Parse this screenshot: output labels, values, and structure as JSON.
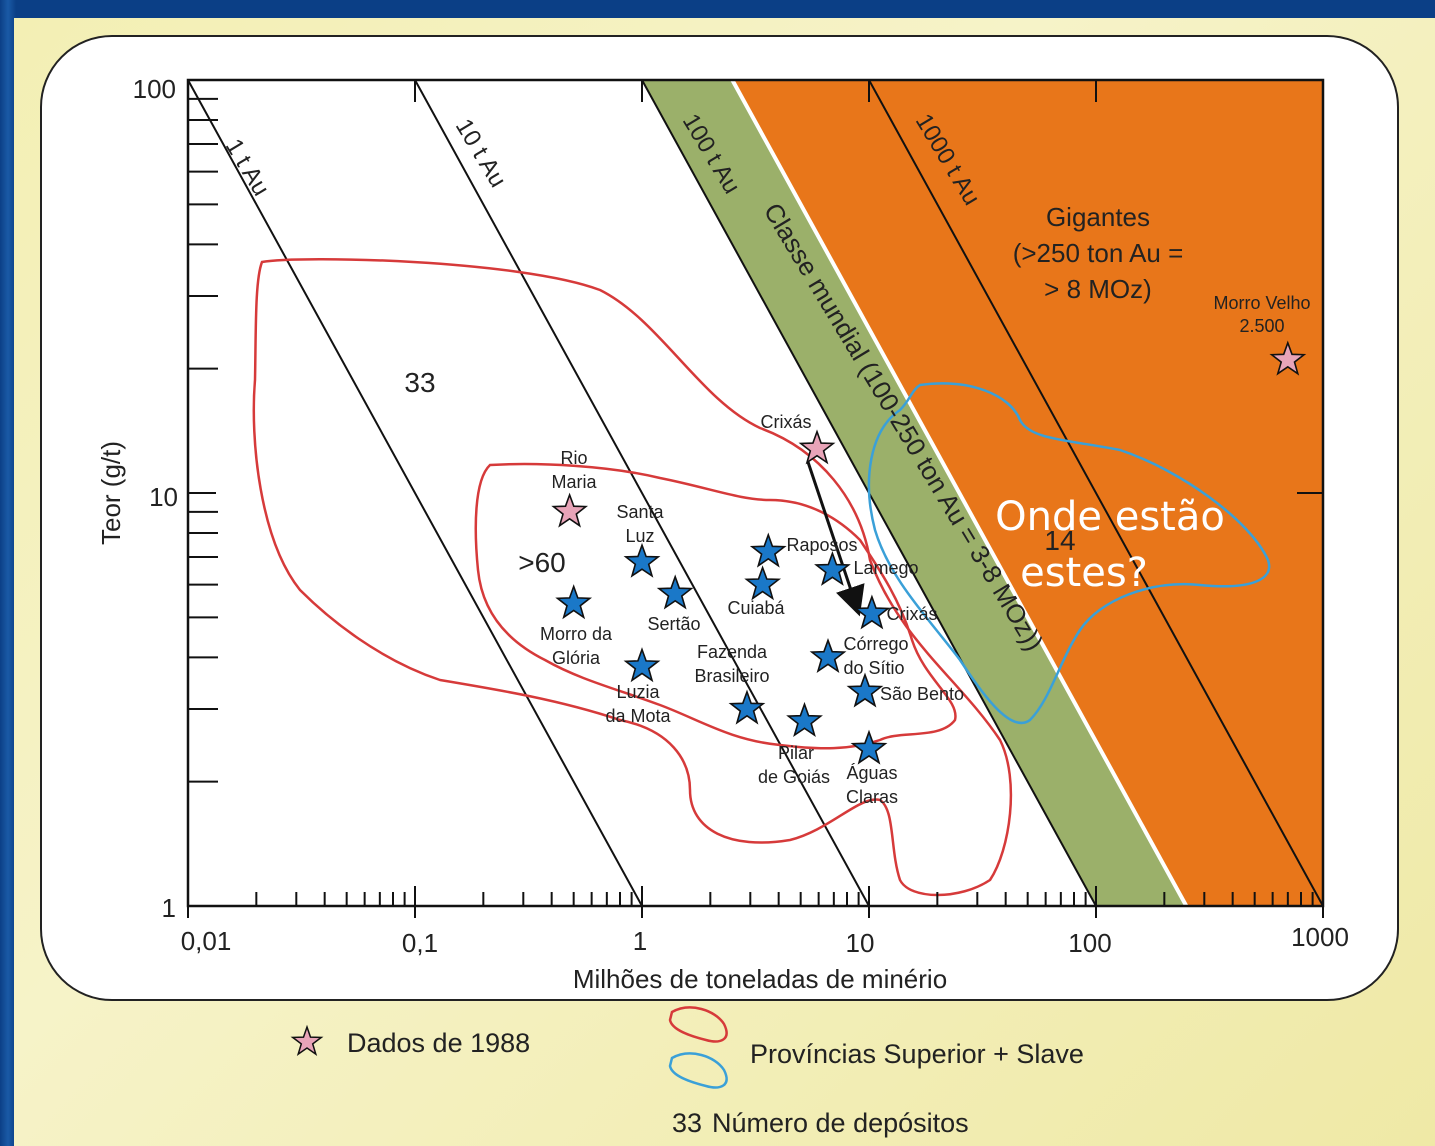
{
  "chart_data": {
    "type": "scatter",
    "x_scale": "log",
    "y_scale": "log",
    "xlim": [
      0.01,
      1000
    ],
    "ylim": [
      1,
      100
    ],
    "xlabel": "Milhões de toneladas de minério",
    "ylabel": "Teor (g/t)",
    "x_tick_labels": [
      "0,01",
      "0,1",
      "1",
      "10",
      "100",
      "1000"
    ],
    "x_ticks": [
      0.01,
      0.1,
      1,
      10,
      100,
      1000
    ],
    "y_tick_labels": [
      "1",
      "10",
      "100"
    ],
    "y_ticks": [
      1,
      10,
      100
    ],
    "tonnage_lines": [
      {
        "label": "1 t Au",
        "tonnes_au": 1
      },
      {
        "label": "10 t Au",
        "tonnes_au": 10
      },
      {
        "label": "100 t Au",
        "tonnes_au": 100
      },
      {
        "label": "1000 t Au",
        "tonnes_au": 1000
      }
    ],
    "bands": [
      {
        "label": "Classe mundial (100-250 ton Au = 3-8 MOz))",
        "min_tonnes_au": 100,
        "max_tonnes_au": 250,
        "color": "#9bb06a"
      },
      {
        "label_lines": [
          "Gigantes",
          "(>250 ton Au =",
          "> 8 MOz)"
        ],
        "min_tonnes_au": 250,
        "color": "#e8761a"
      }
    ],
    "region_counts": [
      "33",
      ">60",
      "14"
    ],
    "deposits_brazil": [
      {
        "name": "Santa Luz",
        "x": 1.0,
        "y": 6.8
      },
      {
        "name": "Morro da Glória",
        "x": 0.5,
        "y": 5.4
      },
      {
        "name": "Sertão",
        "x": 1.4,
        "y": 5.7
      },
      {
        "name": "Luzia da Mota",
        "x": 1.0,
        "y": 3.8
      },
      {
        "name": "Raposos",
        "x": 3.6,
        "y": 7.2
      },
      {
        "name": "Cuiabá",
        "x": 3.4,
        "y": 6.0
      },
      {
        "name": "Lamego",
        "x": 6.9,
        "y": 6.5
      },
      {
        "name": "Crixás",
        "x": 10.3,
        "y": 5.1
      },
      {
        "name": "Córrego do Sítio",
        "x": 6.6,
        "y": 4.0
      },
      {
        "name": "São Bento",
        "x": 9.6,
        "y": 3.3
      },
      {
        "name": "Fazenda Brasileiro",
        "x": 2.9,
        "y": 3.0
      },
      {
        "name": "Pilar de Goiás",
        "x": 5.2,
        "y": 2.8
      },
      {
        "name": "Águas Claras",
        "x": 10.0,
        "y": 2.4
      }
    ],
    "deposits_1988": [
      {
        "name": "Rio Maria",
        "x": 0.48,
        "y": 9.0
      },
      {
        "name": "Crixás",
        "x": 5.9,
        "y": 12.8
      },
      {
        "name": "Morro Velho",
        "value_label": "2.500",
        "x": 700,
        "y": 21
      }
    ],
    "annotation": "Onde estão estes?",
    "colors": {
      "brazil_star": "#1a78c8",
      "pink_star": "#e8a4b8",
      "red_region": "#d63a3a",
      "blue_region": "#3aa0d8",
      "green_band": "#9bb06a",
      "orange_band": "#e8761a"
    },
    "legend": [
      {
        "symbol": "pink-star",
        "label": "Dados de 1988"
      },
      {
        "symbol": "red-and-blue-outline",
        "label": "Províncias Superior + Slave"
      },
      {
        "symbol": "number",
        "number": "33",
        "label": "Número de depósitos"
      }
    ]
  }
}
